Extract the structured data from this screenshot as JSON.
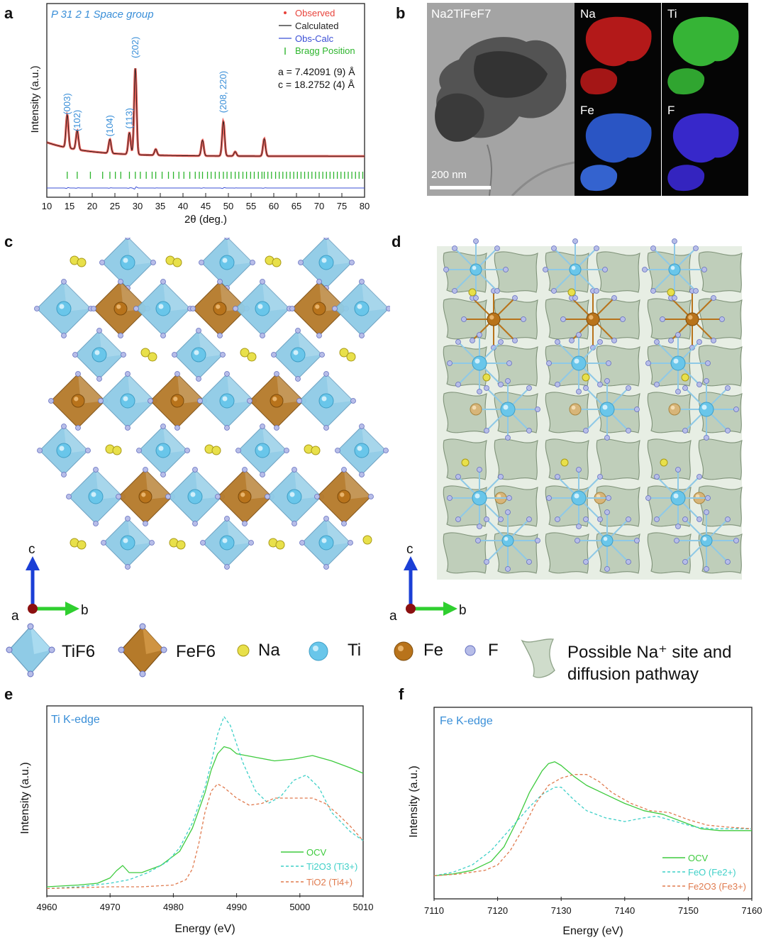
{
  "panels": {
    "a": "a",
    "b": "b",
    "c": "c",
    "d": "d",
    "e": "e",
    "f": "f"
  },
  "panel_a": {
    "space_group": "P 31 2 1 Space group",
    "lattice_a": "a = 7.42091 (9) Å",
    "lattice_c": "c = 18.2752 (4) Å",
    "peak_labels": [
      "(003)",
      "(102)",
      "(104)",
      "(113)",
      "(202)",
      "(208, 220)"
    ]
  },
  "panel_b": {
    "formula": "Na2TiFeF7",
    "scale_bar": "200 nm",
    "maps": [
      "Na",
      "Ti",
      "Fe",
      "F"
    ]
  },
  "axes_c": {
    "c": "c",
    "a": "a",
    "b": "b"
  },
  "axes_d": {
    "c": "c",
    "a": "a",
    "b": "b"
  },
  "legend": {
    "tif6": "TiF6",
    "fef6": "FeF6",
    "na": "Na",
    "ti": "Ti",
    "fe": "Fe",
    "f": "F",
    "pathway_line1": "Possible Na⁺ site and",
    "pathway_line2": "diffusion pathway"
  },
  "colors": {
    "observed": "#e8433b",
    "calculated": "#222222",
    "obs_calc": "#3b4fd6",
    "bragg": "#2db52d",
    "label_blue": "#3a8fd8",
    "ocv": "#3ecb3e",
    "ti2o3": "#3fd0c8",
    "tio2": "#e07b4f",
    "tif6_poly": "#8fcbe6",
    "fef6_poly": "#b57a2a"
  },
  "chart_data": [
    {
      "type": "line",
      "id": "xrd",
      "xlabel": "2θ (deg.)",
      "ylabel": "Intensity (a.u.)",
      "xlim": [
        10,
        80
      ],
      "xticks": [
        10,
        15,
        20,
        25,
        30,
        35,
        40,
        45,
        50,
        55,
        60,
        65,
        70,
        75,
        80
      ],
      "legend": [
        "Observed",
        "Calculated",
        "Obs-Calc",
        "Bragg Position"
      ],
      "legend_position": "top-right",
      "peaks": [
        {
          "x": 14.5,
          "h": 0.38,
          "label": "(003)"
        },
        {
          "x": 16.7,
          "h": 0.22,
          "label": "(102)"
        },
        {
          "x": 23.9,
          "h": 0.16,
          "label": "(104)"
        },
        {
          "x": 28.2,
          "h": 0.25,
          "label": "(113)"
        },
        {
          "x": 29.5,
          "h": 1.0,
          "label": "(202)"
        },
        {
          "x": 34.0,
          "h": 0.07
        },
        {
          "x": 44.3,
          "h": 0.18
        },
        {
          "x": 48.9,
          "h": 0.4,
          "label": "(208, 220)"
        },
        {
          "x": 51.5,
          "h": 0.05
        },
        {
          "x": 57.9,
          "h": 0.2
        }
      ],
      "bragg_positions": [
        14.5,
        16.7,
        19.6,
        22.3,
        23.9,
        25.1,
        26.3,
        28.2,
        29.5,
        30.6,
        31.9,
        33.2,
        34.0,
        35.4,
        36.8,
        37.9,
        39.1,
        40.2,
        41.5,
        42.7,
        43.6,
        44.3,
        45.4,
        46.2,
        47.1,
        48.0,
        48.9,
        49.7,
        50.6,
        51.5,
        52.3,
        53.2,
        54.0,
        54.9,
        55.7,
        56.6,
        57.4,
        57.9,
        58.7,
        59.5,
        60.4,
        61.2,
        62.0,
        62.8,
        63.6,
        64.4,
        65.2,
        66.0,
        66.8,
        67.6,
        68.4,
        69.2,
        70.0,
        70.8,
        71.6,
        72.4,
        73.2,
        74.0,
        74.8,
        75.6,
        76.4,
        77.2,
        78.0,
        78.8,
        79.6
      ]
    },
    {
      "type": "line",
      "id": "ti-xanes",
      "title": "Ti K-edge",
      "xlabel": "Energy (eV)",
      "ylabel": "Intensity (a.u.)",
      "xlim": [
        4960,
        5010
      ],
      "xticks": [
        4960,
        4970,
        4980,
        4990,
        5000,
        5010
      ],
      "legend_position": "bottom-right",
      "series": [
        {
          "name": "OCV",
          "style": "solid",
          "x": [
            4960,
            4965,
            4968,
            4970,
            4971,
            4972,
            4973,
            4975,
            4978,
            4981,
            4983,
            4985,
            4986,
            4987,
            4988,
            4989,
            4990,
            4993,
            4996,
            4999,
            5002,
            5005,
            5008,
            5010
          ],
          "y": [
            0.02,
            0.03,
            0.04,
            0.07,
            0.11,
            0.14,
            0.1,
            0.1,
            0.14,
            0.22,
            0.35,
            0.55,
            0.68,
            0.77,
            0.81,
            0.8,
            0.77,
            0.75,
            0.73,
            0.74,
            0.76,
            0.73,
            0.69,
            0.66
          ]
        },
        {
          "name": "Ti2O3 (Ti3+)",
          "style": "dashed",
          "x": [
            4960,
            4965,
            4970,
            4973,
            4976,
            4979,
            4981,
            4983,
            4985,
            4986,
            4987,
            4988,
            4989,
            4991,
            4993,
            4995,
            4997,
            4999,
            5001,
            5003,
            5005,
            5008,
            5010
          ],
          "y": [
            0.01,
            0.02,
            0.04,
            0.06,
            0.1,
            0.16,
            0.24,
            0.38,
            0.58,
            0.72,
            0.88,
            0.98,
            0.93,
            0.72,
            0.56,
            0.49,
            0.53,
            0.62,
            0.65,
            0.58,
            0.44,
            0.33,
            0.28
          ]
        },
        {
          "name": "TiO2 (Ti4+)",
          "style": "dashed",
          "x": [
            4960,
            4970,
            4975,
            4980,
            4982,
            4983,
            4984,
            4985,
            4986,
            4987,
            4988,
            4990,
            4992,
            4994,
            4996,
            4998,
            5000,
            5002,
            5004,
            5006,
            5008,
            5010
          ],
          "y": [
            0.01,
            0.02,
            0.02,
            0.03,
            0.06,
            0.12,
            0.26,
            0.44,
            0.56,
            0.6,
            0.58,
            0.52,
            0.48,
            0.49,
            0.52,
            0.52,
            0.52,
            0.52,
            0.49,
            0.43,
            0.36,
            0.28
          ]
        }
      ]
    },
    {
      "type": "line",
      "id": "fe-xanes",
      "title": "Fe K-edge",
      "xlabel": "Energy (eV)",
      "ylabel": "Intensity (a.u.)",
      "xlim": [
        7110,
        7160
      ],
      "xticks": [
        7110,
        7120,
        7130,
        7140,
        7150,
        7160
      ],
      "legend_position": "bottom-right",
      "series": [
        {
          "name": "OCV",
          "style": "solid",
          "x": [
            7110,
            7113,
            7116,
            7119,
            7121,
            7123,
            7125,
            7127,
            7128,
            7129,
            7130,
            7132,
            7134,
            7137,
            7140,
            7143,
            7146,
            7149,
            7152,
            7155,
            7158,
            7160
          ],
          "y": [
            0.1,
            0.11,
            0.13,
            0.18,
            0.26,
            0.4,
            0.56,
            0.68,
            0.72,
            0.73,
            0.71,
            0.65,
            0.6,
            0.55,
            0.5,
            0.46,
            0.44,
            0.4,
            0.36,
            0.35,
            0.35,
            0.35
          ]
        },
        {
          "name": "FeO (Fe2+)",
          "style": "dashed",
          "x": [
            7110,
            7113,
            7116,
            7119,
            7121,
            7123,
            7125,
            7127,
            7129,
            7130,
            7132,
            7134,
            7137,
            7140,
            7143,
            7145,
            7148,
            7151,
            7154,
            7157,
            7160
          ],
          "y": [
            0.1,
            0.12,
            0.16,
            0.24,
            0.32,
            0.4,
            0.48,
            0.55,
            0.59,
            0.59,
            0.52,
            0.46,
            0.42,
            0.4,
            0.42,
            0.43,
            0.4,
            0.37,
            0.36,
            0.36,
            0.36
          ]
        },
        {
          "name": "Fe2O3 (Fe3+)",
          "style": "dashed",
          "x": [
            7110,
            7114,
            7118,
            7120,
            7122,
            7124,
            7126,
            7128,
            7130,
            7132,
            7134,
            7136,
            7138,
            7141,
            7144,
            7147,
            7150,
            7153,
            7156,
            7160
          ],
          "y": [
            0.1,
            0.11,
            0.13,
            0.16,
            0.24,
            0.36,
            0.5,
            0.6,
            0.64,
            0.66,
            0.66,
            0.62,
            0.56,
            0.5,
            0.46,
            0.45,
            0.41,
            0.38,
            0.37,
            0.36
          ]
        }
      ]
    }
  ]
}
